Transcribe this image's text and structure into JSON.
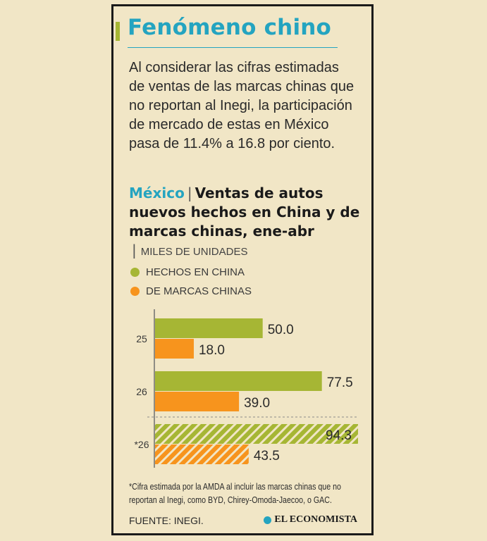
{
  "header": {
    "title": "Fenómeno chino",
    "intro": "Al considerar las cifras estimadas de ventas de las marcas chinas que no reportan al Inegi, la participación de mercado de estas en México pasa de 11.4% a 16.8 por ciento."
  },
  "subhead": {
    "country": "México",
    "separator": "|",
    "title": "Ventas de autos nuevos hechos en China y de marcas chinas, ene-abr",
    "units": "MILES DE UNIDADES"
  },
  "legend": [
    {
      "label": "HECHOS EN CHINA",
      "color": "#a6b634"
    },
    {
      "label": "DE MARCAS CHINAS",
      "color": "#f7941d"
    }
  ],
  "chart_data": {
    "type": "bar",
    "orientation": "horizontal",
    "categories": [
      "25",
      "26",
      "*26"
    ],
    "series": [
      {
        "name": "HECHOS EN CHINA",
        "color": "#a6b634",
        "values": [
          50.0,
          77.5,
          94.3
        ]
      },
      {
        "name": "DE MARCAS CHINAS",
        "color": "#f7941d",
        "values": [
          18.0,
          39.0,
          43.5
        ]
      }
    ],
    "estimated_categories": [
      "*26"
    ],
    "estimated_style": "hatched",
    "xlim": [
      0,
      94.3
    ],
    "grid": false,
    "data_labels": true
  },
  "footer": {
    "note": "*Cifra estimada por la AMDA al incluir las marcas chinas que no reportan al Inegi, como BYD, Chirey-Omoda-Jaecoo, o GAC.",
    "source": "FUENTE: INEGI.",
    "brand": "EL ECONOMISTA"
  },
  "colors": {
    "background": "#f1e6c6",
    "accent": "#24a4c0",
    "green": "#a6b634",
    "orange": "#f7941d"
  }
}
